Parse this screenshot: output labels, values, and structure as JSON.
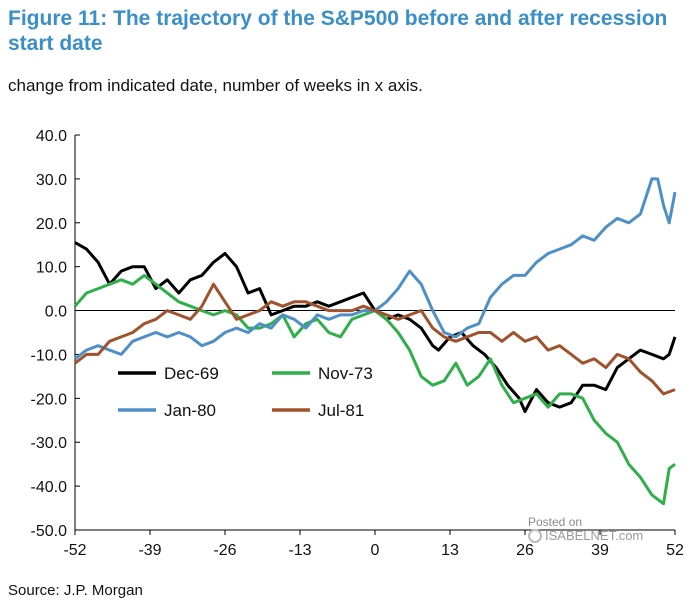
{
  "title": "Figure 11: The trajectory of the S&P500 before and after recession start date",
  "subtitle": "change from indicated date, number of weeks in x axis.",
  "source": "Source: J.P. Morgan",
  "watermark": {
    "posted": "Posted on",
    "brand": "ISABELNET.com"
  },
  "chart_data": {
    "type": "line",
    "xlabel": "",
    "ylabel": "",
    "xlim": [
      -52,
      52
    ],
    "ylim": [
      -50,
      40
    ],
    "xticks": [
      -52,
      -39,
      -26,
      -13,
      0,
      13,
      26,
      39,
      52
    ],
    "xtick_labels": [
      "-52",
      "-39",
      "-26",
      "-13",
      "0",
      "13",
      "26",
      "39",
      "52"
    ],
    "yticks": [
      40,
      30,
      20,
      10,
      0,
      -10,
      -20,
      -30,
      -40,
      -50
    ],
    "ytick_labels": [
      "40.0",
      "30.0",
      "20.0",
      "10.0",
      "0.0",
      "-10.0",
      "-20.0",
      "-30.0",
      "-40.0",
      "-50.0"
    ],
    "zero_line": true,
    "legend": "bottom-left",
    "series": [
      {
        "name": "Dec-69",
        "color": "#000000",
        "points": [
          [
            -52,
            15.5
          ],
          [
            -50,
            14
          ],
          [
            -48,
            11
          ],
          [
            -46,
            6
          ],
          [
            -44,
            9
          ],
          [
            -42,
            10
          ],
          [
            -40,
            10
          ],
          [
            -38,
            5
          ],
          [
            -36,
            7
          ],
          [
            -34,
            4
          ],
          [
            -32,
            7
          ],
          [
            -30,
            8
          ],
          [
            -28,
            11
          ],
          [
            -26,
            13
          ],
          [
            -24,
            10
          ],
          [
            -22,
            4
          ],
          [
            -20,
            5
          ],
          [
            -18,
            -1
          ],
          [
            -16,
            0
          ],
          [
            -14,
            1
          ],
          [
            -12,
            1
          ],
          [
            -10,
            2
          ],
          [
            -8,
            1
          ],
          [
            -6,
            2
          ],
          [
            -4,
            3
          ],
          [
            -2,
            4
          ],
          [
            0,
            0
          ],
          [
            2,
            -2
          ],
          [
            4,
            -1
          ],
          [
            6,
            -2
          ],
          [
            8,
            -4
          ],
          [
            10,
            -8
          ],
          [
            11,
            -9
          ],
          [
            13,
            -6
          ],
          [
            15,
            -5
          ],
          [
            17,
            -8
          ],
          [
            19,
            -10
          ],
          [
            21,
            -13
          ],
          [
            23,
            -17
          ],
          [
            25,
            -20
          ],
          [
            26,
            -23
          ],
          [
            28,
            -18
          ],
          [
            30,
            -21
          ],
          [
            32,
            -22
          ],
          [
            34,
            -21
          ],
          [
            36,
            -17
          ],
          [
            38,
            -17
          ],
          [
            40,
            -18
          ],
          [
            42,
            -13
          ],
          [
            44,
            -11
          ],
          [
            46,
            -9
          ],
          [
            48,
            -10
          ],
          [
            50,
            -11
          ],
          [
            51,
            -10
          ],
          [
            52,
            -6
          ]
        ]
      },
      {
        "name": "Nov-73",
        "color": "#2eaf4a",
        "points": [
          [
            -52,
            1
          ],
          [
            -50,
            4
          ],
          [
            -48,
            5
          ],
          [
            -46,
            6
          ],
          [
            -44,
            7
          ],
          [
            -42,
            6
          ],
          [
            -40,
            8
          ],
          [
            -38,
            6
          ],
          [
            -36,
            4
          ],
          [
            -34,
            2
          ],
          [
            -32,
            1
          ],
          [
            -30,
            0
          ],
          [
            -28,
            -1
          ],
          [
            -26,
            0
          ],
          [
            -24,
            -1
          ],
          [
            -22,
            -4
          ],
          [
            -20,
            -4
          ],
          [
            -18,
            -3
          ],
          [
            -16,
            -1
          ],
          [
            -14,
            -6
          ],
          [
            -12,
            -3
          ],
          [
            -10,
            -2
          ],
          [
            -8,
            -5
          ],
          [
            -6,
            -6
          ],
          [
            -4,
            -2
          ],
          [
            -2,
            -1
          ],
          [
            0,
            0
          ],
          [
            2,
            -2
          ],
          [
            4,
            -5
          ],
          [
            6,
            -9
          ],
          [
            8,
            -15
          ],
          [
            10,
            -17
          ],
          [
            12,
            -16
          ],
          [
            14,
            -12
          ],
          [
            16,
            -17
          ],
          [
            18,
            -15
          ],
          [
            20,
            -11
          ],
          [
            22,
            -17
          ],
          [
            24,
            -21
          ],
          [
            26,
            -20
          ],
          [
            28,
            -19
          ],
          [
            30,
            -22
          ],
          [
            32,
            -19
          ],
          [
            34,
            -19
          ],
          [
            36,
            -20
          ],
          [
            38,
            -25
          ],
          [
            40,
            -28
          ],
          [
            42,
            -30
          ],
          [
            44,
            -35
          ],
          [
            46,
            -38
          ],
          [
            48,
            -42
          ],
          [
            50,
            -44
          ],
          [
            51,
            -36
          ],
          [
            52,
            -35
          ]
        ]
      },
      {
        "name": "Jan-80",
        "color": "#4e8fc7",
        "points": [
          [
            -52,
            -11
          ],
          [
            -50,
            -9
          ],
          [
            -48,
            -8
          ],
          [
            -46,
            -9
          ],
          [
            -44,
            -10
          ],
          [
            -42,
            -7
          ],
          [
            -40,
            -6
          ],
          [
            -38,
            -5
          ],
          [
            -36,
            -6
          ],
          [
            -34,
            -5
          ],
          [
            -32,
            -6
          ],
          [
            -30,
            -8
          ],
          [
            -28,
            -7
          ],
          [
            -26,
            -5
          ],
          [
            -24,
            -4
          ],
          [
            -22,
            -5
          ],
          [
            -20,
            -3
          ],
          [
            -18,
            -4
          ],
          [
            -16,
            -1
          ],
          [
            -14,
            -2
          ],
          [
            -12,
            -4
          ],
          [
            -10,
            -1
          ],
          [
            -8,
            -2
          ],
          [
            -6,
            -1
          ],
          [
            -4,
            -1
          ],
          [
            -2,
            0
          ],
          [
            0,
            0
          ],
          [
            2,
            2
          ],
          [
            4,
            5
          ],
          [
            6,
            9
          ],
          [
            8,
            6
          ],
          [
            10,
            0
          ],
          [
            12,
            -5
          ],
          [
            14,
            -6
          ],
          [
            16,
            -4
          ],
          [
            18,
            -3
          ],
          [
            20,
            3
          ],
          [
            22,
            6
          ],
          [
            24,
            8
          ],
          [
            26,
            8
          ],
          [
            28,
            11
          ],
          [
            30,
            13
          ],
          [
            32,
            14
          ],
          [
            34,
            15
          ],
          [
            36,
            17
          ],
          [
            38,
            16
          ],
          [
            40,
            19
          ],
          [
            42,
            21
          ],
          [
            44,
            20
          ],
          [
            46,
            22
          ],
          [
            48,
            30
          ],
          [
            49,
            30
          ],
          [
            50,
            24
          ],
          [
            51,
            20
          ],
          [
            52,
            27
          ]
        ]
      },
      {
        "name": "Jul-81",
        "color": "#a0522d",
        "points": [
          [
            -52,
            -12
          ],
          [
            -50,
            -10
          ],
          [
            -48,
            -10
          ],
          [
            -46,
            -7
          ],
          [
            -44,
            -6
          ],
          [
            -42,
            -5
          ],
          [
            -40,
            -3
          ],
          [
            -38,
            -2
          ],
          [
            -36,
            0
          ],
          [
            -34,
            -1
          ],
          [
            -32,
            -2
          ],
          [
            -30,
            1
          ],
          [
            -28,
            6
          ],
          [
            -26,
            2
          ],
          [
            -24,
            -2
          ],
          [
            -22,
            -1
          ],
          [
            -20,
            0
          ],
          [
            -18,
            2
          ],
          [
            -16,
            1
          ],
          [
            -14,
            2
          ],
          [
            -12,
            2
          ],
          [
            -10,
            1
          ],
          [
            -8,
            0
          ],
          [
            -6,
            0
          ],
          [
            -4,
            0
          ],
          [
            -2,
            1
          ],
          [
            0,
            0
          ],
          [
            2,
            -1
          ],
          [
            4,
            -2
          ],
          [
            6,
            -1
          ],
          [
            8,
            0
          ],
          [
            10,
            -4
          ],
          [
            12,
            -6
          ],
          [
            14,
            -7
          ],
          [
            16,
            -6
          ],
          [
            18,
            -5
          ],
          [
            20,
            -5
          ],
          [
            22,
            -7
          ],
          [
            24,
            -5
          ],
          [
            26,
            -7
          ],
          [
            28,
            -6
          ],
          [
            30,
            -9
          ],
          [
            32,
            -8
          ],
          [
            34,
            -10
          ],
          [
            36,
            -12
          ],
          [
            38,
            -11
          ],
          [
            40,
            -13
          ],
          [
            42,
            -10
          ],
          [
            44,
            -11
          ],
          [
            46,
            -14
          ],
          [
            48,
            -16
          ],
          [
            50,
            -19
          ],
          [
            52,
            -18
          ]
        ]
      }
    ]
  }
}
